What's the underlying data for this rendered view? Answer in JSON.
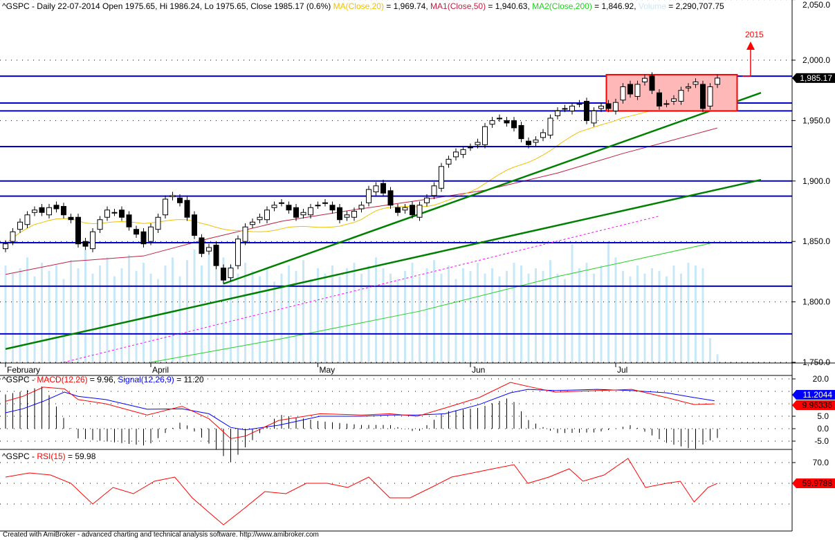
{
  "header": {
    "title": "^GSPC - Daily 22-07-2014 Open 1975.65, Hi 1986.24, Lo 1975.65, Close 1985.17 (0.6%) ",
    "ma20_label": "MA(Close,20)",
    "ma20_value": " = 1,969.74, ",
    "ma50_label": "MA1(Close,50)",
    "ma50_value": " = 1,940.63, ",
    "ma200_label": "MA2(Close,200)",
    "ma200_value": " = 1,846.92, ",
    "volume_label": "Volume",
    "volume_value": " = 2,290,707.75"
  },
  "colors": {
    "ma20": "#f0c000",
    "ma50": "#c02040",
    "ma200": "#20d020",
    "volume": "#c8e8f8",
    "hline": "#0000cc",
    "trend": "#008000",
    "macd": "#ff0000",
    "signal": "#0000ff",
    "rsi": "#ff0000"
  },
  "annotation": {
    "label": "2015"
  },
  "last_price_label": "1,985.17",
  "macd_header": {
    "prefix": "^GSPC - ",
    "macd": "MACD(12,26)",
    "macd_val": " = 9.96, ",
    "signal": "Signal(12,26,9)",
    "signal_val": " = 11.20"
  },
  "macd_axis": [
    "20.0",
    "5.0",
    "0.0",
    "-5.0"
  ],
  "macd_signal_tag": "11.2044",
  "macd_tag": "9.96336",
  "rsi_header": {
    "prefix": "^GSPC - ",
    "rsi": "RSI(15)",
    "val": " = 59.98"
  },
  "rsi_axis": [
    "70.0"
  ],
  "rsi_tag": "59.9788",
  "footer": "Created with AmiBroker - advanced charting and technical analysis software. http://www.amibroker.com",
  "chart_data": {
    "type": "candlestick",
    "ylim": [
      1750,
      2050
    ],
    "y_ticks": [
      "2,050.0",
      "2,000.0",
      "1,950.0",
      "1,900.0",
      "1,850.0",
      "1,800.0",
      "1,750.0"
    ],
    "y_tick_values": [
      2050,
      2000,
      1950,
      1900,
      1850,
      1800,
      1750
    ],
    "months": [
      {
        "label": "February",
        "bar": 0
      },
      {
        "label": "April",
        "bar": 20
      },
      {
        "label": "May",
        "bar": 43
      },
      {
        "label": "Jun",
        "bar": 64
      },
      {
        "label": "Jul",
        "bar": 84
      }
    ],
    "closes": [
      1848,
      1858,
      1866,
      1872,
      1876,
      1874,
      1878,
      1877,
      1872,
      1868,
      1848,
      1846,
      1858,
      1868,
      1876,
      1874,
      1870,
      1862,
      1856,
      1848,
      1862,
      1870,
      1885,
      1888,
      1882,
      1870,
      1855,
      1840,
      1845,
      1830,
      1818,
      1828,
      1852,
      1862,
      1866,
      1870,
      1876,
      1880,
      1882,
      1876,
      1870,
      1874,
      1878,
      1880,
      1882,
      1876,
      1868,
      1872,
      1875,
      1880,
      1893,
      1896,
      1890,
      1880,
      1874,
      1878,
      1872,
      1880,
      1886,
      1896,
      1912,
      1918,
      1924,
      1926,
      1928,
      1932,
      1945,
      1950,
      1952,
      1948,
      1944,
      1935,
      1930,
      1934,
      1940,
      1952,
      1958,
      1960,
      1962,
      1964,
      1950,
      1958,
      1962,
      1960,
      1965,
      1978,
      1972,
      1980,
      1985,
      1975,
      1962,
      1964,
      1968,
      1975,
      1978,
      1982,
      1960,
      1978,
      1985.17
    ],
    "volume_millions": [
      3600,
      3300,
      3500,
      3900,
      3200,
      3700,
      3400,
      3600,
      3100,
      3800,
      3500,
      4200,
      3300,
      3600,
      3900,
      3200,
      3500,
      4000,
      3400,
      3700,
      3300,
      3100,
      3600,
      3900,
      3200,
      3800,
      4200,
      3600,
      4000,
      4300,
      3900,
      3600,
      3300,
      3700,
      3400,
      3200,
      3500,
      3000,
      3300,
      3600,
      3400,
      3800,
      3100,
      3500,
      3300,
      3600,
      3200,
      3500,
      3700,
      3300,
      3600,
      3900,
      3500,
      3300,
      3100,
      3400,
      3700,
      3200,
      3500,
      3800,
      3300,
      3600,
      3100,
      3500,
      3400,
      3700,
      3300,
      3500,
      3200,
      3400,
      3700,
      3600,
      3300,
      3500,
      3400,
      3800,
      3300,
      3100,
      4400,
      3500,
      3700,
      3300,
      3600,
      4500,
      3900,
      3400,
      3200,
      3600,
      3300,
      3500,
      3400,
      3200,
      3600,
      3300,
      3700,
      3600,
      3500,
      900,
      300
    ],
    "ma50": [
      [
        0,
        1822.7
      ],
      [
        9,
        1833.5
      ],
      [
        19,
        1838
      ],
      [
        28,
        1852.4
      ],
      [
        38,
        1866.7
      ],
      [
        47,
        1875.3
      ],
      [
        57,
        1884
      ],
      [
        66,
        1892.4
      ],
      [
        76,
        1906.6
      ],
      [
        85,
        1922.8
      ],
      [
        91,
        1932.4
      ],
      [
        98,
        1943.9
      ]
    ],
    "ma200": [
      [
        20,
        1750
      ],
      [
        38,
        1769.5
      ],
      [
        57,
        1792.3
      ],
      [
        76,
        1821
      ],
      [
        97,
        1848.4
      ]
    ],
    "horizontal_lines": [
      1986.8,
      1964.5,
      1958,
      1928.5,
      1900,
      1887.5,
      1849,
      1813,
      1773.5
    ],
    "trendlines": [
      {
        "from": [
          0,
          1761
        ],
        "to": [
          104,
          1901
        ]
      },
      {
        "from": [
          30,
          1815
        ],
        "to": [
          104,
          1973
        ]
      }
    ],
    "dashed_line": {
      "from": [
        8,
        1750
      ],
      "to": [
        90,
        1871
      ]
    },
    "box": {
      "bars": [
        83,
        101
      ],
      "price": [
        1958,
        1988
      ]
    },
    "macd": {
      "bars": [
        0,
        2.4,
        5.2,
        8.1,
        10,
        13.8,
        19.5,
        24.3,
        28,
        31,
        33,
        37.6,
        43.3,
        49,
        52.9,
        56.7,
        60.5,
        65.2,
        69.5,
        71.9,
        75.7,
        81.4,
        86.2,
        91,
        94.8,
        97.6
      ],
      "macd": [
        11,
        13,
        16.7,
        16,
        11.7,
        10,
        5.5,
        9,
        4,
        -4,
        -3,
        3.3,
        6,
        5.5,
        6,
        5,
        8.3,
        12.5,
        18.6,
        17,
        14.7,
        15.3,
        15.8,
        12.5,
        9.7,
        9.96
      ],
      "signal": [
        6.4,
        8,
        11,
        14.7,
        13,
        11.7,
        7.8,
        8,
        6,
        0.5,
        -0.5,
        1.4,
        5,
        5,
        5.5,
        5.5,
        6,
        9.7,
        14.4,
        15.8,
        15.3,
        15.8,
        15.3,
        14.4,
        12.5,
        11.2
      ],
      "ylim": [
        -8,
        22
      ]
    },
    "rsi": {
      "bars": [
        0,
        3.3,
        6.2,
        9,
        12,
        14.8,
        17.6,
        20.5,
        23.3,
        25.7,
        28,
        30,
        32.9,
        35.7,
        38.6,
        41.4,
        44.3,
        47.1,
        50,
        52.9,
        55.7,
        58.6,
        61.4,
        64.3,
        67.1,
        70,
        71.9,
        74.8,
        77.6,
        79.5,
        82.4,
        85.7,
        88.1,
        91,
        92.9,
        94.8,
        96.7,
        98
      ],
      "values": [
        63,
        65,
        64,
        60,
        50,
        58,
        55,
        61,
        63,
        53,
        46,
        40,
        48,
        56,
        55,
        60,
        60,
        58,
        63,
        53,
        53,
        58,
        63,
        65,
        67,
        69,
        60,
        63,
        67,
        61,
        64,
        72,
        58,
        60,
        61,
        51,
        58,
        59.98
      ]
    }
  }
}
